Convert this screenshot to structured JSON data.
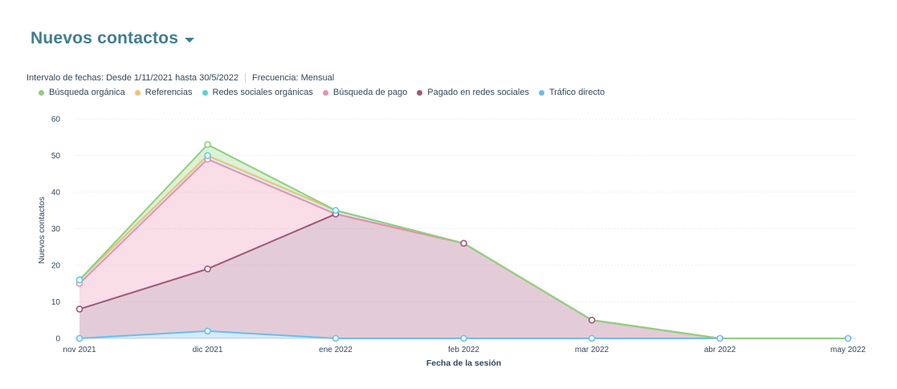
{
  "header": {
    "title": "Nuevos contactos"
  },
  "meta": {
    "range_label": "Intervalo de fechas:",
    "range_value": "Desde 1/11/2021 hasta 30/5/2022",
    "freq_label": "Frecuencia:",
    "freq_value": "Mensual"
  },
  "chart_data": {
    "type": "area",
    "stacked": true,
    "categories": [
      "nov 2021",
      "dic 2021",
      "ene 2022",
      "feb 2022",
      "mar 2022",
      "abr 2022",
      "may 2022"
    ],
    "xlabel": "Fecha de la sesión",
    "ylabel": "Nuevos contactos",
    "ylim": [
      0,
      60
    ],
    "yticks": [
      0,
      10,
      20,
      30,
      40,
      50,
      60
    ],
    "grid": true,
    "legend_position": "top-left",
    "series": [
      {
        "name": "Búsqueda orgánica",
        "color": "#8fcf7e",
        "values": [
          0,
          3,
          0,
          0,
          0,
          0,
          0
        ]
      },
      {
        "name": "Referencias",
        "color": "#f5c26b",
        "values": [
          0,
          0,
          0,
          0,
          0,
          0,
          0
        ]
      },
      {
        "name": "Redes sociales orgánicas",
        "color": "#51d3d9",
        "values": [
          1,
          1,
          1,
          0,
          0,
          0,
          0
        ]
      },
      {
        "name": "Búsqueda de pago",
        "color": "#ea90b1",
        "values": [
          7,
          30,
          0,
          0,
          0,
          0,
          0
        ]
      },
      {
        "name": "Pagado en redes sociales",
        "color": "#a2557a",
        "values": [
          8,
          17,
          34,
          26,
          5,
          0,
          0
        ]
      },
      {
        "name": "Tráfico directo",
        "color": "#6cbcf2",
        "values": [
          0,
          2,
          0,
          0,
          0,
          0,
          0
        ]
      }
    ]
  }
}
